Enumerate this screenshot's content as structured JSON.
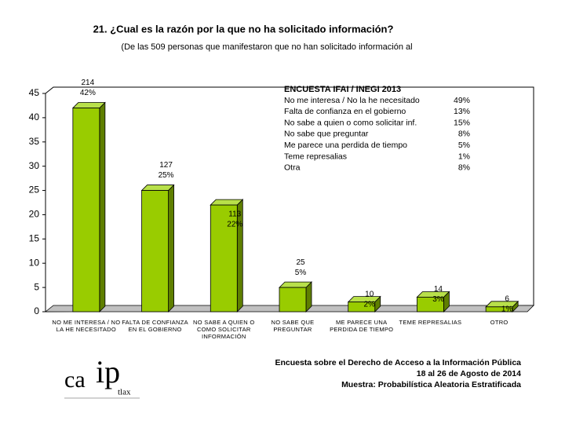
{
  "chart_data": {
    "type": "bar3d",
    "title": "21. ¿Cual es la razón por la que no ha solicitado información?",
    "subtitle": "(De las 509 personas que manifestaron que no han solicitado información al",
    "categories": [
      "NO ME INTERESA / NO LA HE NECESITADO",
      "FALTA DE CONFIANZA EN EL GOBIERNO",
      "NO SABE A QUIEN O COMO SOLICITAR INFORMACIÓN",
      "NO SABE QUE PREGUNTAR",
      "ME PARECE UNA PERDIDA DE TIEMPO",
      "TEME REPRESALIAS",
      "OTRO"
    ],
    "values": [
      42,
      25,
      22,
      5,
      2,
      3,
      1
    ],
    "value_labels": [
      "42%",
      "25%",
      "22%",
      "5%",
      "2%",
      "3%",
      "1%"
    ],
    "counts": [
      "214",
      "127",
      "113",
      "25",
      "10",
      "14",
      "6"
    ],
    "color": "#99cc00",
    "ylim": [
      0,
      45
    ],
    "yticks": [
      0,
      5,
      10,
      15,
      20,
      25,
      30,
      35,
      40,
      45
    ],
    "legend_table": {
      "title": "ENCUESTA IFAI / INEGI 2013",
      "rows": [
        [
          "No me interesa / No la he necesitado",
          "49%"
        ],
        [
          "Falta de confianza en el gobierno",
          "13%"
        ],
        [
          "No sabe a quien o como solicitar inf.",
          "15%"
        ],
        [
          "No sabe que preguntar",
          "8%"
        ],
        [
          "Me parece una perdida de tiempo",
          "5%"
        ],
        [
          "Teme represalias",
          "1%"
        ],
        [
          "Otra",
          "8%"
        ]
      ]
    },
    "footer": [
      "Encuesta sobre el Derecho de Acceso a la Información Pública",
      "18 al 26 de Agosto de 2014",
      "Muestra: Probabilística Aleatoria Estratificada"
    ],
    "logo": [
      "ca",
      "ip",
      "tlax"
    ]
  }
}
